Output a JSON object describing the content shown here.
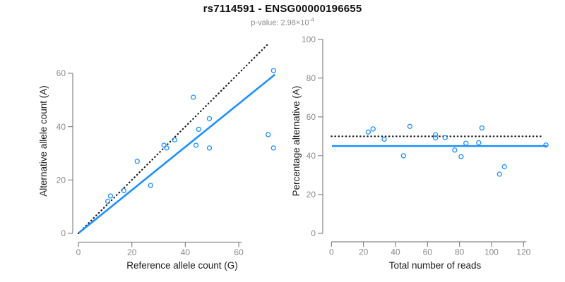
{
  "title": "rs7114591 - ENSG00000196655",
  "subtitle": {
    "main": "p-value: 2.98×10",
    "exponent": "-4"
  },
  "colors": {
    "accent_blue": "#1E90FF",
    "dotted_black": "#1a1a1a",
    "axis_gray": "#878787",
    "tick_label_gray": "#8a8a8a",
    "axis_title_color": "#1a1a1a",
    "subtitle_gray": "#8a8a8a",
    "title_color": "#111111",
    "background": "#ffffff"
  },
  "chart_data": [
    {
      "type": "scatter",
      "panel": "left",
      "title": "",
      "xlabel": "Reference allele count (G)",
      "ylabel": "Alternative allele count (A)",
      "xticks": [
        0,
        20,
        40,
        60
      ],
      "yticks": [
        0,
        20,
        40,
        60
      ],
      "xlim": [
        0,
        74
      ],
      "ylim": [
        0,
        62
      ],
      "grid": false,
      "legend": "none",
      "marker": "open-circle",
      "points": [
        [
          11,
          12
        ],
        [
          12,
          14
        ],
        [
          17,
          16
        ],
        [
          22,
          27
        ],
        [
          27,
          18
        ],
        [
          32,
          33
        ],
        [
          33,
          32
        ],
        [
          36,
          35
        ],
        [
          43,
          51
        ],
        [
          44,
          33
        ],
        [
          45,
          39
        ],
        [
          49,
          32
        ],
        [
          49,
          43
        ],
        [
          71,
          37
        ],
        [
          73,
          32
        ],
        [
          73,
          61
        ]
      ],
      "lines": [
        {
          "name": "identity-line",
          "style": "dotted",
          "color": "#1a1a1a",
          "x": [
            0,
            71
          ],
          "y": [
            0,
            71
          ]
        },
        {
          "name": "fitted-proportion-line",
          "style": "solid",
          "color": "#1E90FF",
          "x": [
            0.2,
            73.5
          ],
          "y": [
            0.2,
            59.5
          ]
        }
      ]
    },
    {
      "type": "scatter",
      "panel": "right",
      "title": "",
      "xlabel": "Total number of reads",
      "ylabel": "Percentage alternative (A)",
      "xticks": [
        0,
        20,
        40,
        60,
        80,
        100,
        120
      ],
      "yticks": [
        0,
        20,
        40,
        60,
        80,
        100
      ],
      "xlim": [
        0,
        136
      ],
      "ylim": [
        0,
        100
      ],
      "grid": false,
      "legend": "none",
      "marker": "open-circle",
      "points": [
        [
          23,
          52.2
        ],
        [
          26,
          53.8
        ],
        [
          33,
          48.5
        ],
        [
          45,
          40.0
        ],
        [
          49,
          55.1
        ],
        [
          65,
          50.8
        ],
        [
          65,
          49.2
        ],
        [
          71,
          49.3
        ],
        [
          77,
          42.9
        ],
        [
          81,
          39.5
        ],
        [
          84,
          46.4
        ],
        [
          92,
          46.7
        ],
        [
          94,
          54.3
        ],
        [
          105,
          30.5
        ],
        [
          108,
          34.3
        ],
        [
          134,
          45.5
        ]
      ],
      "lines": [
        {
          "name": "expected-percentage-line",
          "style": "dotted",
          "color": "#1a1a1a",
          "x": [
            0,
            132
          ],
          "y": [
            50,
            50
          ]
        },
        {
          "name": "observed-percentage-line",
          "style": "solid",
          "color": "#1E90FF",
          "x": [
            0.3,
            134.5
          ],
          "y": [
            45,
            45
          ]
        }
      ]
    }
  ]
}
